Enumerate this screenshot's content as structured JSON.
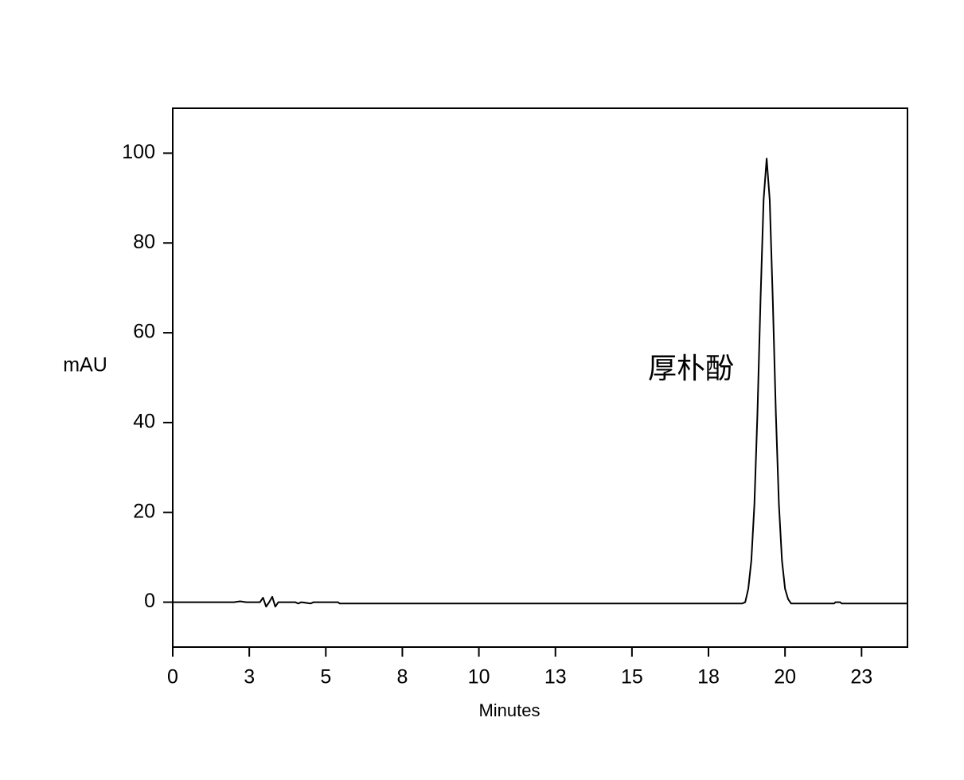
{
  "chart_data": {
    "type": "line",
    "x_label": "Minutes",
    "y_label": "mAU",
    "annotation": "厚朴酚",
    "color": "#000000",
    "xlim": [
      0,
      24
    ],
    "ylim": [
      -10,
      110
    ],
    "xticks": [
      0,
      {
        "value": 2.5,
        "label": "3"
      },
      5,
      {
        "value": 7.5,
        "label": "8"
      },
      10,
      {
        "value": 12.5,
        "label": "13"
      },
      15,
      {
        "value": 17.5,
        "label": "18"
      },
      20,
      {
        "value": 22.5,
        "label": "23"
      }
    ],
    "yticks": [
      0,
      20,
      40,
      60,
      80,
      100
    ],
    "grid": false,
    "x": [
      0,
      2.0,
      2.2,
      2.4,
      2.85,
      2.95,
      3.05,
      3.15,
      3.25,
      3.35,
      3.45,
      4.0,
      4.1,
      4.2,
      4.5,
      4.6,
      5.4,
      5.45,
      18.6,
      18.7,
      18.8,
      18.9,
      19.0,
      19.1,
      19.2,
      19.3,
      19.4,
      19.5,
      19.6,
      19.7,
      19.8,
      19.9,
      20.0,
      20.1,
      20.2,
      21.6,
      21.65,
      21.8,
      21.85,
      24
    ],
    "values": [
      0,
      0,
      0.2,
      0,
      0,
      1.0,
      -1.0,
      0,
      1.2,
      -1.0,
      0,
      0,
      -0.3,
      0,
      -0.3,
      0,
      0,
      -0.3,
      -0.3,
      0,
      3.0,
      9.3,
      21.8,
      42.2,
      67.4,
      89.6,
      98.8,
      89.6,
      67.4,
      42.2,
      21.8,
      9.3,
      3.0,
      0.7,
      -0.3,
      -0.3,
      0,
      0,
      -0.3,
      -0.3
    ]
  }
}
